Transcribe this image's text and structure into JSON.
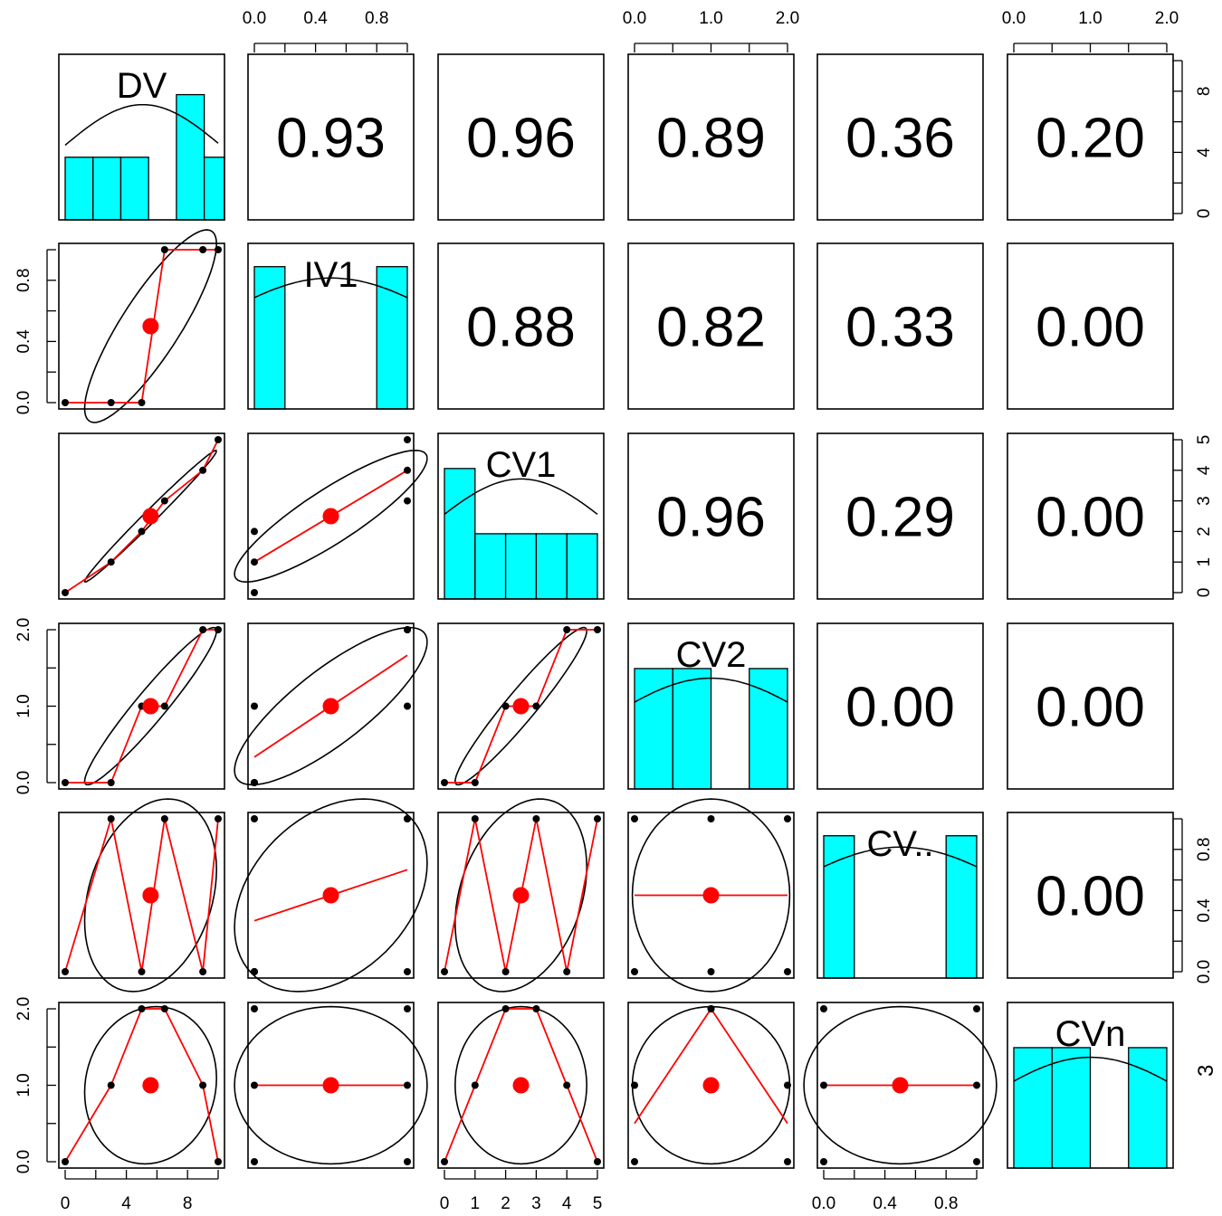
{
  "chart_data": {
    "type": "scatter-matrix",
    "variables": [
      "DV",
      "IV1",
      "CV1",
      "CV2",
      "CV..",
      "CVn"
    ],
    "data": {
      "DV": [
        0,
        3,
        5,
        9,
        10,
        6.5
      ],
      "IV1": [
        0,
        0,
        0,
        1,
        1,
        1
      ],
      "CV1": [
        0,
        1,
        2,
        4,
        5,
        3
      ],
      "CV2": [
        0,
        0,
        1,
        2,
        2,
        1
      ],
      "CV..": [
        0,
        1,
        0,
        0,
        1,
        1
      ],
      "CVn": [
        0,
        1,
        2,
        1,
        0,
        2
      ]
    },
    "correlations": [
      {
        "row": 0,
        "col": 1,
        "label": "0.93"
      },
      {
        "row": 0,
        "col": 2,
        "label": "0.96"
      },
      {
        "row": 0,
        "col": 3,
        "label": "0.89"
      },
      {
        "row": 0,
        "col": 4,
        "label": "0.36"
      },
      {
        "row": 0,
        "col": 5,
        "label": "0.20"
      },
      {
        "row": 1,
        "col": 2,
        "label": "0.88"
      },
      {
        "row": 1,
        "col": 3,
        "label": "0.82"
      },
      {
        "row": 1,
        "col": 4,
        "label": "0.33"
      },
      {
        "row": 1,
        "col": 5,
        "label": "0.00"
      },
      {
        "row": 2,
        "col": 3,
        "label": "0.96"
      },
      {
        "row": 2,
        "col": 4,
        "label": "0.29"
      },
      {
        "row": 2,
        "col": 5,
        "label": "0.00"
      },
      {
        "row": 3,
        "col": 4,
        "label": "0.00"
      },
      {
        "row": 3,
        "col": 5,
        "label": "0.00"
      },
      {
        "row": 4,
        "col": 5,
        "label": "0.00"
      }
    ],
    "histograms": [
      {
        "var": "DV",
        "breaks": [
          0,
          2,
          4,
          6,
          8,
          10,
          12
        ],
        "counts": [
          1,
          1,
          1,
          0,
          2,
          1
        ],
        "xlim": [
          0,
          11
        ],
        "ylim": [
          0,
          2.5
        ]
      },
      {
        "var": "IV1",
        "breaks": [
          0,
          0.2,
          0.4,
          0.6,
          0.8,
          1.0
        ],
        "counts": [
          3,
          0,
          0,
          0,
          3
        ],
        "xlim": [
          0,
          1
        ],
        "ylim": [
          0,
          3.3
        ]
      },
      {
        "var": "CV1",
        "breaks": [
          0,
          1,
          2,
          3,
          4,
          5
        ],
        "counts": [
          2,
          1,
          1,
          1,
          1
        ],
        "xlim": [
          0,
          5
        ],
        "ylim": [
          0,
          2.4
        ]
      },
      {
        "var": "CV2",
        "breaks": [
          0,
          0.5,
          1.0,
          1.5,
          2.0
        ],
        "counts": [
          2,
          2,
          0,
          2
        ],
        "xlim": [
          0,
          2
        ],
        "ylim": [
          0,
          2.6
        ]
      },
      {
        "var": "CV..",
        "breaks": [
          0,
          0.2,
          0.4,
          0.6,
          0.8,
          1.0
        ],
        "counts": [
          3,
          0,
          0,
          0,
          3
        ],
        "xlim": [
          0,
          1
        ],
        "ylim": [
          0,
          3.3
        ]
      },
      {
        "var": "CVn",
        "breaks": [
          0,
          0.5,
          1.0,
          1.5,
          2.0
        ],
        "counts": [
          2,
          2,
          0,
          2
        ],
        "xlim": [
          0,
          2
        ],
        "ylim": [
          0,
          2.6
        ]
      }
    ],
    "axes": {
      "top": [
        {
          "col": 1,
          "ticks": [
            "0.0",
            "0.4",
            "0.8"
          ]
        },
        {
          "col": 3,
          "ticks": [
            "0.0",
            "1.0",
            "2.0"
          ]
        },
        {
          "col": 5,
          "ticks": [
            "0.0",
            "1.0",
            "2.0"
          ]
        }
      ],
      "bottom": [
        {
          "col": 0,
          "ticks": [
            "0",
            "4",
            "8"
          ]
        },
        {
          "col": 2,
          "ticks": [
            "0",
            "1",
            "2",
            "3",
            "4",
            "5"
          ]
        },
        {
          "col": 4,
          "ticks": [
            "0.0",
            "0.4",
            "0.8"
          ]
        }
      ],
      "left": [
        {
          "row": 1,
          "ticks": [
            "0.0",
            "0.4",
            "0.8"
          ]
        },
        {
          "row": 3,
          "ticks": [
            "0.0",
            "1.0",
            "2.0"
          ]
        },
        {
          "row": 5,
          "ticks": [
            "0.0",
            "1.0",
            "2.0"
          ]
        }
      ],
      "right": [
        {
          "row": 0,
          "ticks": [
            "0",
            "4",
            "8"
          ]
        },
        {
          "row": 2,
          "ticks": [
            "0",
            "1",
            "2",
            "3",
            "4",
            "5"
          ]
        },
        {
          "row": 4,
          "ticks": [
            "0.0",
            "0.4",
            "0.8"
          ]
        }
      ]
    },
    "edge_fragment": "3",
    "colors": {
      "histogram": "#00ffff",
      "smooth": "#ff0000",
      "points": "#000000"
    }
  }
}
